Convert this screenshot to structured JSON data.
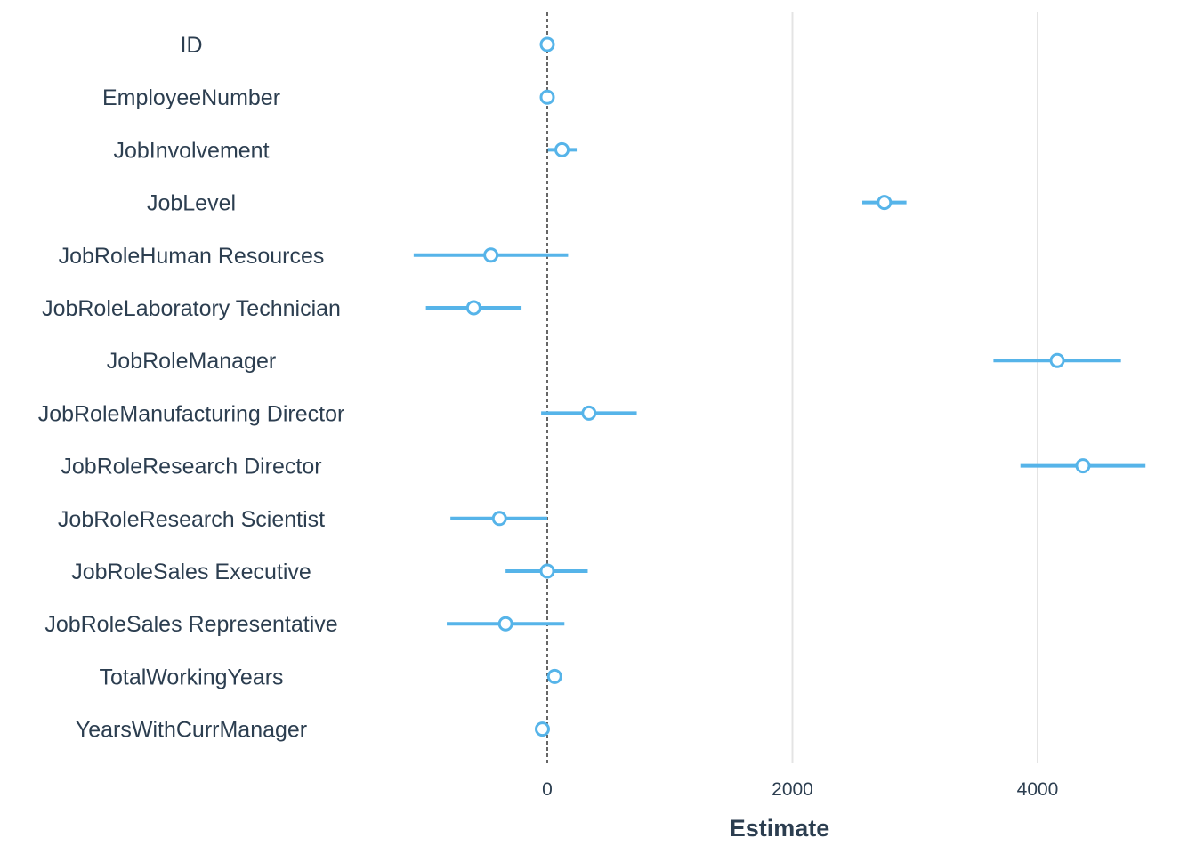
{
  "chart_data": {
    "type": "scatter",
    "subtype": "coefficient-plot",
    "title": "",
    "xlabel": "Estimate",
    "ylabel": "",
    "xlim": [
      -1450,
      4950
    ],
    "xticks": [
      0,
      2000,
      4000
    ],
    "grid": {
      "vertical_major": true,
      "horizontal": false
    },
    "reference_line": {
      "x": 0,
      "style": "dashed"
    },
    "color": "#56b4e9",
    "legend": "none",
    "terms": [
      {
        "term": "ID",
        "estimate": 0,
        "low": -10,
        "high": 10
      },
      {
        "term": "EmployeeNumber",
        "estimate": 0,
        "low": -10,
        "high": 10
      },
      {
        "term": "JobInvolvement",
        "estimate": 120,
        "low": 5,
        "high": 240
      },
      {
        "term": "JobLevel",
        "estimate": 2750,
        "low": 2570,
        "high": 2930
      },
      {
        "term": "JobRoleHuman Resources",
        "estimate": -460,
        "low": -1090,
        "high": 170
      },
      {
        "term": "JobRoleLaboratory Technician",
        "estimate": -600,
        "low": -990,
        "high": -210
      },
      {
        "term": "JobRoleManager",
        "estimate": 4160,
        "low": 3640,
        "high": 4680
      },
      {
        "term": "JobRoleManufacturing Director",
        "estimate": 340,
        "low": -50,
        "high": 730
      },
      {
        "term": "JobRoleResearch Director",
        "estimate": 4370,
        "low": 3860,
        "high": 4880
      },
      {
        "term": "JobRoleResearch Scientist",
        "estimate": -390,
        "low": -790,
        "high": 0
      },
      {
        "term": "JobRoleSales Executive",
        "estimate": 0,
        "low": -340,
        "high": 330
      },
      {
        "term": "JobRoleSales Representative",
        "estimate": -340,
        "low": -820,
        "high": 140
      },
      {
        "term": "TotalWorkingYears",
        "estimate": 60,
        "low": 20,
        "high": 100
      },
      {
        "term": "YearsWithCurrManager",
        "estimate": -40,
        "low": -80,
        "high": 0
      }
    ]
  }
}
